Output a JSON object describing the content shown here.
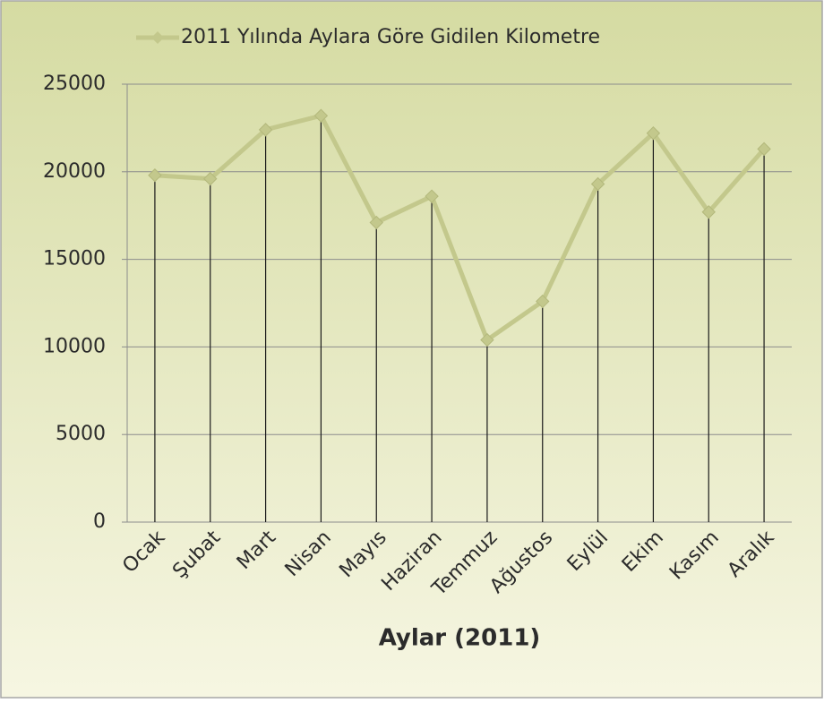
{
  "chart_data": {
    "type": "line",
    "xlabel": "Aylar (2011)",
    "categories": [
      "Ocak",
      "Şubat",
      "Mart",
      "Nisan",
      "Mayıs",
      "Haziran",
      "Temmuz",
      "Ağustos",
      "Eylül",
      "Ekim",
      "Kasım",
      "Aralık"
    ],
    "series": [
      {
        "name": "2011 Yılında Aylara Göre Gidilen Kilometre",
        "color": "#c3c88c",
        "values": [
          19800,
          19600,
          22400,
          23200,
          17100,
          18600,
          10400,
          12600,
          19300,
          22200,
          17700,
          21300
        ]
      }
    ],
    "ylim": [
      0,
      25000
    ],
    "yticks": [
      0,
      5000,
      10000,
      15000,
      20000,
      25000
    ],
    "grid": true,
    "drop_lines": true,
    "legend": "top"
  }
}
